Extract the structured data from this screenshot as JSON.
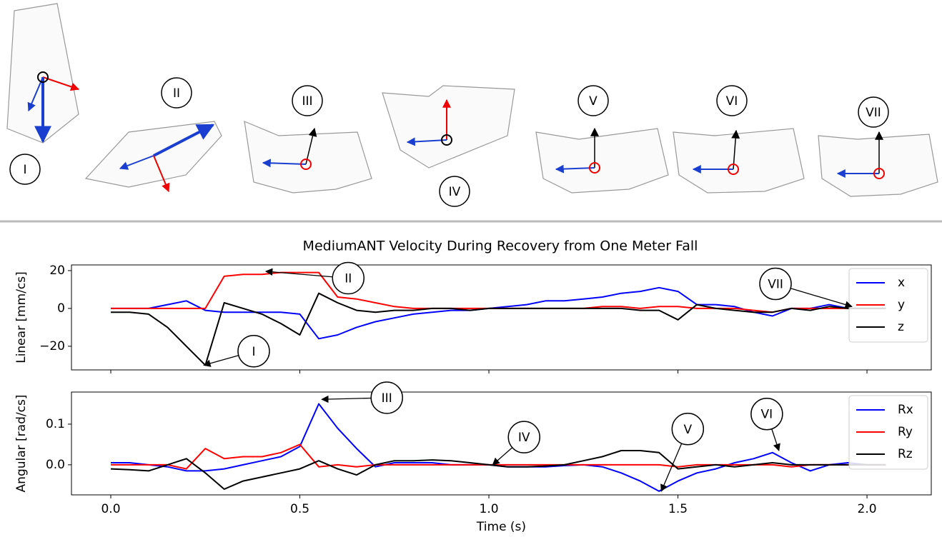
{
  "illustrations": {
    "labels": [
      "I",
      "II",
      "III",
      "IV",
      "V",
      "VI",
      "VII"
    ]
  },
  "chart_data": [
    {
      "type": "line",
      "title": "MediumANT Velocity During Recovery from One Meter Fall",
      "ylabel": "Linear [mm/cs]",
      "x": [
        0,
        0.05,
        0.1,
        0.15,
        0.2,
        0.25,
        0.3,
        0.35,
        0.4,
        0.45,
        0.5,
        0.55,
        0.6,
        0.65,
        0.7,
        0.75,
        0.8,
        0.85,
        0.9,
        0.95,
        1.0,
        1.05,
        1.1,
        1.15,
        1.2,
        1.25,
        1.3,
        1.35,
        1.4,
        1.45,
        1.5,
        1.55,
        1.6,
        1.65,
        1.7,
        1.75,
        1.8,
        1.85,
        1.9,
        1.95,
        2.0,
        2.05
      ],
      "series": [
        {
          "name": "x",
          "color": "#0000ff",
          "values": [
            0,
            0,
            0,
            2,
            4,
            -1,
            -2,
            -2,
            -2,
            -2,
            -3,
            -16,
            -14,
            -10,
            -7,
            -5,
            -3,
            -2,
            -1,
            -1,
            0,
            1,
            2,
            4,
            4,
            5,
            6,
            8,
            9,
            11,
            9,
            2,
            2,
            1,
            -2,
            -4,
            0,
            0,
            2,
            0,
            0,
            0
          ]
        },
        {
          "name": "y",
          "color": "#ff0000",
          "values": [
            0,
            0,
            0,
            0,
            0,
            0,
            17,
            18,
            18,
            19,
            19,
            19,
            6,
            5,
            3,
            1,
            0,
            0,
            0,
            0,
            0,
            0,
            0,
            0,
            0,
            0,
            1,
            1,
            0,
            1,
            1,
            0,
            0,
            0,
            -1,
            -2,
            0,
            0,
            0,
            0,
            0,
            0
          ]
        },
        {
          "name": "z",
          "color": "#000000",
          "values": [
            -2,
            -2,
            -3,
            -10,
            -20,
            -30,
            3,
            0,
            -3,
            -8,
            -14,
            8,
            3,
            -1,
            -2,
            -1,
            -1,
            0,
            0,
            -1,
            0,
            0,
            0,
            0,
            0,
            0,
            0,
            0,
            -1,
            -1,
            -6,
            2,
            0,
            -1,
            -2,
            -2,
            0,
            -1,
            1,
            0,
            0,
            0
          ]
        }
      ],
      "xlim": [
        -0.104,
        2.17
      ],
      "xticks": [
        0,
        0.5,
        1,
        1.5,
        2
      ],
      "show_xtick_labels": false,
      "ylim": [
        -32.5,
        23
      ],
      "yticks": [
        {
          "value": -20,
          "label": "−20"
        },
        0,
        20
      ],
      "legend": "upper right",
      "annotations": [
        {
          "text": "I",
          "xy": [
            0.246,
            -30
          ],
          "xytext": [
            0.378,
            -22.6
          ]
        },
        {
          "text": "II",
          "xy": [
            0.41,
            19.6
          ],
          "xytext": [
            0.628,
            16
          ]
        },
        {
          "text": "VII",
          "xy": [
            1.96,
            1
          ],
          "xytext": [
            1.758,
            13
          ]
        }
      ]
    },
    {
      "type": "line",
      "ylabel": "Angular [rad/cs]",
      "xlabel": "Time (s)",
      "x": [
        0,
        0.05,
        0.1,
        0.15,
        0.2,
        0.25,
        0.3,
        0.35,
        0.4,
        0.45,
        0.5,
        0.55,
        0.6,
        0.65,
        0.7,
        0.75,
        0.8,
        0.85,
        0.9,
        0.95,
        1.0,
        1.05,
        1.1,
        1.15,
        1.2,
        1.25,
        1.3,
        1.35,
        1.4,
        1.45,
        1.5,
        1.55,
        1.6,
        1.65,
        1.7,
        1.75,
        1.8,
        1.85,
        1.9,
        1.95,
        2.0,
        2.05
      ],
      "series": [
        {
          "name": "Rx",
          "color": "#0000ff",
          "values": [
            0.005,
            0.005,
            0,
            -0.005,
            -0.015,
            -0.015,
            -0.01,
            0,
            0.01,
            0.02,
            0.045,
            0.15,
            0.09,
            0.04,
            -0.005,
            0.005,
            0.005,
            0.005,
            0,
            0,
            0,
            -0.005,
            -0.005,
            -0.005,
            -0.002,
            0,
            -0.005,
            -0.02,
            -0.04,
            -0.065,
            -0.04,
            -0.02,
            -0.01,
            0.005,
            0.015,
            0.03,
            0.005,
            -0.015,
            0,
            0.005,
            0,
            0
          ]
        },
        {
          "name": "Ry",
          "color": "#ff0000",
          "values": [
            0,
            0,
            0,
            0,
            -0.01,
            0.04,
            0.015,
            0.02,
            0.02,
            0.03,
            0.05,
            -0.005,
            0,
            -0.005,
            0,
            0,
            0,
            0,
            0,
            0,
            0,
            0,
            0,
            0,
            0,
            0,
            0,
            0,
            0,
            0,
            -0.005,
            0,
            0,
            0,
            0,
            0,
            -0.005,
            0,
            0,
            0,
            0,
            0
          ]
        },
        {
          "name": "Rz",
          "color": "#000000",
          "values": [
            -0.01,
            -0.012,
            -0.015,
            0,
            0.015,
            -0.02,
            -0.06,
            -0.04,
            -0.03,
            -0.02,
            -0.01,
            0.01,
            -0.01,
            -0.025,
            0,
            0.01,
            0.01,
            0.012,
            0.01,
            0.005,
            0,
            -0.005,
            -0.005,
            -0.003,
            0,
            0.01,
            0.02,
            0.035,
            0.035,
            0.03,
            -0.01,
            -0.005,
            0,
            -0.005,
            0,
            0.005,
            0,
            0,
            0,
            0,
            0,
            0
          ]
        }
      ],
      "xlim": [
        -0.104,
        2.17
      ],
      "xticks": [
        {
          "value": 0,
          "label": "0.0"
        },
        0.5,
        {
          "value": 1,
          "label": "1.0"
        },
        1.5,
        {
          "value": 2,
          "label": "2.0"
        }
      ],
      "show_xtick_labels": true,
      "ylim": [
        -0.074,
        0.179
      ],
      "yticks": [
        {
          "value": 0,
          "label": "0.0"
        },
        0.1
      ],
      "legend": "upper right",
      "annotations": [
        {
          "text": "III",
          "xy": [
            0.558,
            0.161
          ],
          "xytext": [
            0.73,
            0.165
          ]
        },
        {
          "text": "IV",
          "xy": [
            1.01,
            0.0
          ],
          "xytext": [
            1.093,
            0.068
          ]
        },
        {
          "text": "V",
          "xy": [
            1.456,
            -0.065
          ],
          "xytext": [
            1.526,
            0.088
          ]
        },
        {
          "text": "VI",
          "xy": [
            1.767,
            0.035
          ],
          "xytext": [
            1.735,
            0.125
          ]
        }
      ]
    }
  ]
}
